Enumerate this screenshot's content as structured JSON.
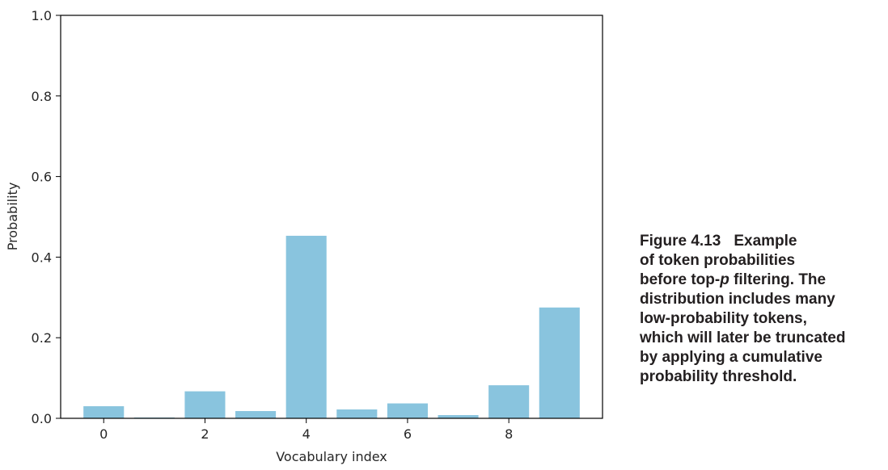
{
  "chart_data": {
    "type": "bar",
    "x": [
      0,
      1,
      2,
      3,
      4,
      5,
      6,
      7,
      8,
      9
    ],
    "values": [
      0.03,
      0.002,
      0.067,
      0.018,
      0.453,
      0.022,
      0.037,
      0.008,
      0.082,
      0.275
    ],
    "bar_color": "#89c4de",
    "xlabel": "Vocabulary index",
    "ylabel": "Probability",
    "ylim": [
      0.0,
      1.0
    ],
    "xticks": [
      "0",
      "2",
      "4",
      "6",
      "8"
    ],
    "yticks": [
      "0.0",
      "0.2",
      "0.4",
      "0.6",
      "0.8",
      "1.0"
    ],
    "grid": false,
    "legend": "none"
  },
  "caption": {
    "figure_number": "Figure 4.13",
    "line1": "Example",
    "line2": "of token probabilities",
    "line3_pre": "before top-",
    "line3_italic": "p",
    "line3_post": " filtering. The",
    "line4": "distribution includes many",
    "line5": "low-probability tokens,",
    "line6": "which will later be truncated",
    "line7": "by applying a cumulative",
    "line8": "probability threshold."
  }
}
